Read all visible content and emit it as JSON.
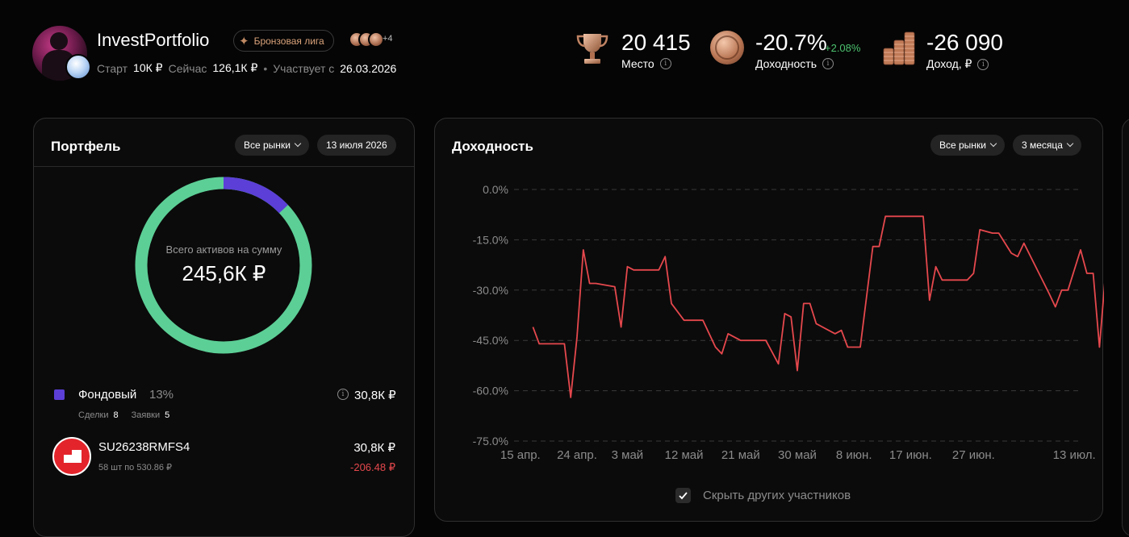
{
  "profile": {
    "name": "InvestPortfolio",
    "league": "Бронзовая лига",
    "more_badges": "+4",
    "start_label": "Старт",
    "start_value": "10К ₽",
    "now_label": "Сейчас",
    "now_value": "126,1К ₽",
    "since_label": "Участвует с",
    "since_value": "26.03.2026"
  },
  "stats": {
    "place": {
      "value": "20 415",
      "label": "Место",
      "icon": "trophy-icon"
    },
    "yield": {
      "value": "-20.7%",
      "delta": "+2.08%",
      "label": "Доходность",
      "icon": "medal-icon"
    },
    "income": {
      "value": "-26 090",
      "label": "Доход, ₽",
      "icon": "coins-icon"
    }
  },
  "portfolio": {
    "title": "Портфель",
    "market_filter": "Все рынки",
    "date_filter": "13 июля 2026",
    "total_label": "Всего активов на сумму",
    "total_value": "245,6К ₽",
    "segment": {
      "name": "Фондовый",
      "percent": "13%",
      "value": "30,8К ₽",
      "trades_label": "Сделки",
      "trades": "8",
      "orders_label": "Заявки",
      "orders": "5"
    },
    "asset": {
      "ticker": "SU26238RMFS4",
      "details": "58 шт по 530.86 ₽",
      "value": "30,8К ₽",
      "pl": "-206.48 ₽"
    },
    "donut_share": 0.13
  },
  "returns": {
    "title": "Доходность",
    "market_filter": "Все рынки",
    "period_filter": "3 месяца",
    "hide_label": "Скрыть других участников",
    "hide_checked": true
  },
  "colors": {
    "accent_green": "#5ccf96",
    "accent_purple": "#5b3fd6",
    "line_red": "#e5484d",
    "positive": "#4cc26f"
  },
  "chart_data": {
    "type": "line",
    "ylim": [
      -75,
      0
    ],
    "y_ticks": [
      0,
      -15,
      -30,
      -45,
      -60,
      -75
    ],
    "y_tick_labels": [
      "0.0%",
      "-15.0%",
      "-30.0%",
      "-45.0%",
      "-60.0%",
      "-75.0%"
    ],
    "x_tick_labels": [
      "15 апр.",
      "24 апр.",
      "3 май",
      "12 май",
      "21 май",
      "30 май",
      "8 июн.",
      "17 июн.",
      "27 июн.",
      "13 июл."
    ],
    "x_tick_positions": [
      1,
      10,
      18,
      27,
      36,
      45,
      54,
      63,
      73,
      89
    ],
    "x_range": [
      0,
      90
    ],
    "grid": true,
    "series": [
      {
        "x": [
          3,
          4,
          8,
          9,
          10,
          11,
          12,
          13,
          16,
          17,
          18,
          19,
          23,
          24,
          25,
          27,
          28,
          29,
          30,
          32,
          33,
          34,
          36,
          38,
          39,
          40,
          42,
          43,
          44,
          45,
          46,
          47,
          48,
          51,
          52,
          53,
          54,
          55,
          57,
          58,
          59,
          60,
          61,
          65,
          66,
          67,
          68,
          69,
          72,
          73,
          74,
          76,
          77,
          79,
          80,
          81,
          85,
          86,
          87,
          88,
          90,
          91,
          92,
          93,
          94
        ],
        "y": [
          -41,
          -46,
          -46,
          -62,
          -44,
          -18,
          -28,
          -28,
          -29,
          -41,
          -23,
          -24,
          -24,
          -20,
          -34,
          -39,
          -39,
          -39,
          -39,
          -47,
          -49,
          -43,
          -45,
          -45,
          -45,
          -45,
          -52,
          -37,
          -38,
          -54,
          -34,
          -34,
          -40,
          -43,
          -42,
          -47,
          -47,
          -47,
          -17,
          -17,
          -8,
          -8,
          -8,
          -8,
          -33,
          -23,
          -27,
          -27,
          -27,
          -25,
          -12,
          -13,
          -13,
          -19,
          -20,
          -16,
          -31,
          -35,
          -30,
          -30,
          -18,
          -25,
          -25,
          -47,
          -24
        ]
      }
    ]
  }
}
